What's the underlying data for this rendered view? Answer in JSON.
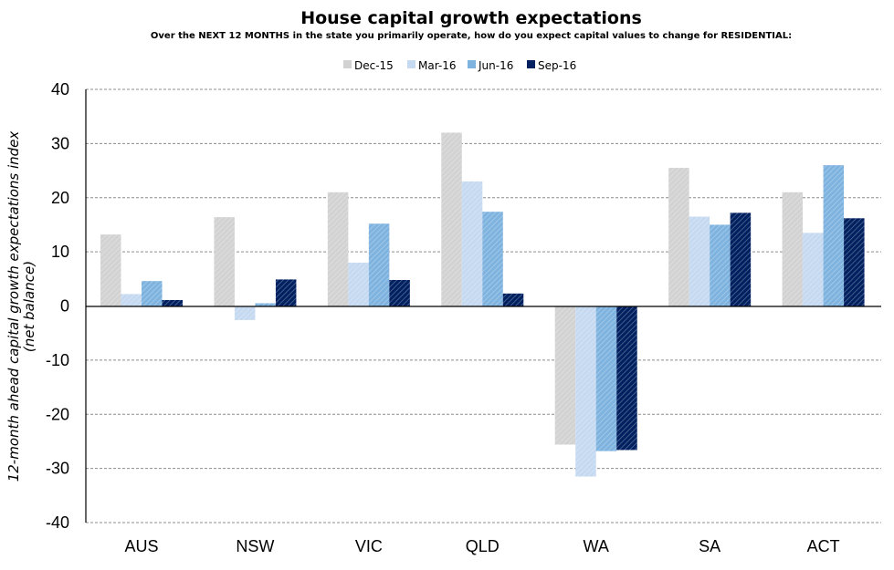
{
  "chart_data": {
    "type": "bar",
    "title": "House capital growth expectations",
    "subtitle": "Over the NEXT 12 MONTHS in the state you primarily operate, how do you expect capital values to change for RESIDENTIAL:",
    "ylabel_line1": "12-month ahead capital growth expectations index",
    "ylabel_line2": "(net balance)",
    "xlabel": "",
    "ylim": [
      -40,
      40
    ],
    "yticks": [
      40,
      30,
      20,
      10,
      0,
      -10,
      -20,
      -30,
      -40
    ],
    "grid": true,
    "legend_position": "top-center",
    "categories": [
      "AUS",
      "NSW",
      "VIC",
      "QLD",
      "WA",
      "SA",
      "ACT"
    ],
    "series": [
      {
        "name": "Dec-15",
        "color": "#d2d2d2",
        "values": [
          13.2,
          16.4,
          21.0,
          32.0,
          -25.6,
          25.5,
          21.0
        ]
      },
      {
        "name": "Mar-16",
        "color": "#c5d9f1",
        "values": [
          2.2,
          -2.6,
          8.0,
          23.0,
          -31.5,
          16.5,
          13.5
        ]
      },
      {
        "name": "Jun-16",
        "color": "#7eb3df",
        "values": [
          4.6,
          0.5,
          15.2,
          17.4,
          -26.8,
          15.0,
          26.0
        ]
      },
      {
        "name": "Sep-16",
        "color": "#002060",
        "values": [
          1.1,
          4.9,
          4.8,
          2.3,
          -26.6,
          17.2,
          16.2
        ]
      }
    ]
  }
}
